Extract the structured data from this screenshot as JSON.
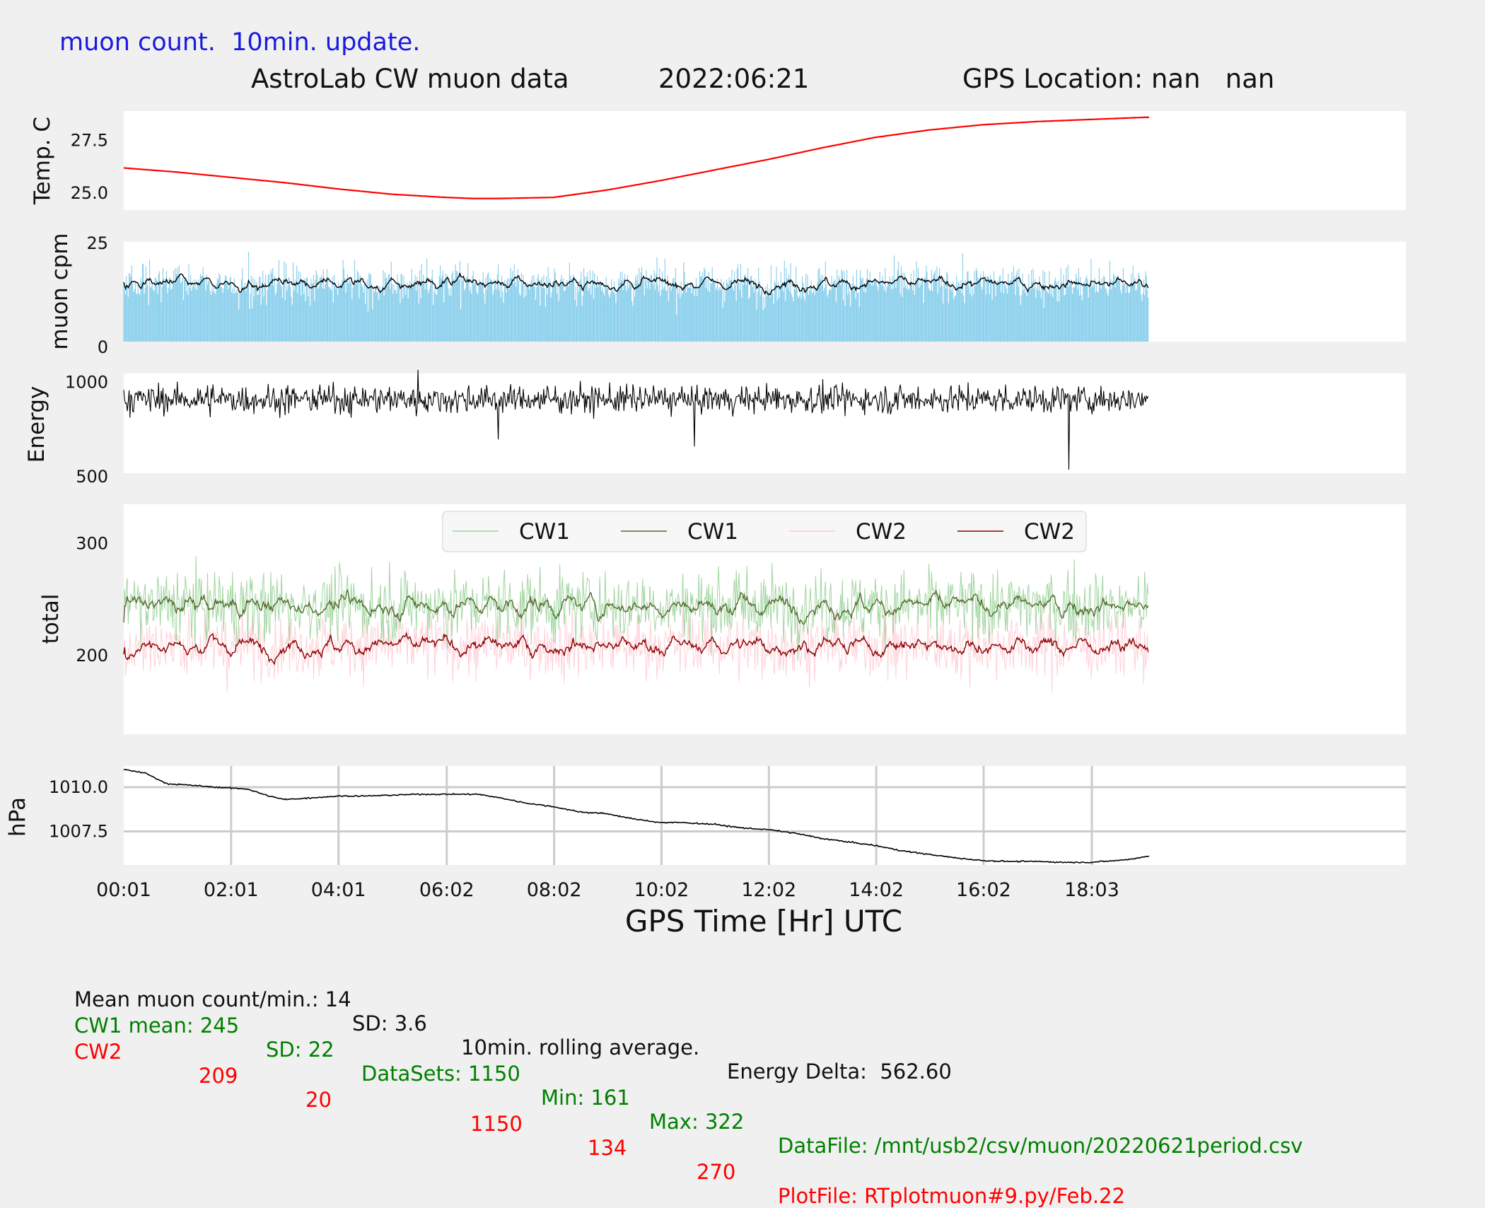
{
  "header": {
    "update_note": "muon count.  10min. update.",
    "title_left": "AstroLab CW muon data",
    "title_date": "2022:06:21",
    "title_gps": "GPS Location: nan   nan"
  },
  "x_axis": {
    "label": "GPS Time  [Hr] UTC",
    "ticks": [
      "00:01",
      "02:01",
      "04:01",
      "06:02",
      "08:02",
      "10:02",
      "12:02",
      "14:02",
      "16:02",
      "18:03"
    ]
  },
  "colors": {
    "temp": "#ff0000",
    "muon_bars": "#87ceeb",
    "cw1_raw": "#8fce8f",
    "cw1_avg": "#556b2f",
    "cw2_raw": "#ffc0cb",
    "cw2_avg": "#8b0000",
    "stats_cw1": "#008000",
    "stats_cw2": "#ff0000"
  },
  "chart_data": [
    {
      "type": "line",
      "ylabel": "Temp. C",
      "yticks": [
        "25.0",
        "27.5"
      ],
      "ylim": [
        24.2,
        28.9
      ],
      "x_hours": [
        0,
        1,
        2,
        3,
        4,
        5,
        6,
        6.5,
        7,
        8,
        9,
        10,
        11,
        12,
        13,
        14,
        15,
        16,
        17,
        18,
        19,
        19.1
      ],
      "series": [
        {
          "values": [
            26.2,
            26.0,
            25.75,
            25.5,
            25.2,
            24.95,
            24.8,
            24.75,
            24.75,
            24.8,
            25.15,
            25.6,
            26.1,
            26.6,
            27.15,
            27.65,
            28.0,
            28.25,
            28.4,
            28.5,
            28.6,
            28.6
          ]
        }
      ]
    },
    {
      "type": "bar",
      "ylabel": "muon cpm",
      "yticks": [
        "0",
        "25"
      ],
      "ylim": [
        0,
        24
      ],
      "x_range_hours": [
        0,
        19.1
      ],
      "mean": 14,
      "sd": 3.6,
      "note": "per-minute counts with 10min. rolling average"
    },
    {
      "type": "line",
      "ylabel": "Energy",
      "yticks": [
        "500",
        "1000"
      ],
      "ylim": [
        490,
        1050
      ],
      "x_range_hours": [
        0,
        19.1
      ],
      "mean": 910,
      "min": 510,
      "max": 1080
    },
    {
      "type": "line",
      "ylabel": "total",
      "yticks": [
        "200",
        "300"
      ],
      "ylim": [
        130,
        335
      ],
      "x_range_hours": [
        0,
        19.1
      ],
      "legend": [
        "CW1",
        "CW1",
        "CW2",
        "CW2"
      ],
      "legend_position": "top-center",
      "series": [
        {
          "name": "CW1",
          "kind": "raw",
          "mean": 245,
          "sd": 22,
          "min": 161,
          "max": 322
        },
        {
          "name": "CW1",
          "kind": "rolling",
          "mean": 245
        },
        {
          "name": "CW2",
          "kind": "raw",
          "mean": 209,
          "sd": 20,
          "min": 134,
          "max": 270
        },
        {
          "name": "CW2",
          "kind": "rolling",
          "mean": 209
        }
      ]
    },
    {
      "type": "line",
      "ylabel": "hPa",
      "yticks": [
        "1007.5",
        "1010.0"
      ],
      "ylim": [
        1005.6,
        1011.2
      ],
      "grid": true,
      "x_hours": [
        0,
        0.4,
        0.8,
        1.3,
        1.7,
        2.3,
        2.7,
        3.0,
        3.5,
        4.0,
        4.5,
        5.0,
        5.5,
        6.0,
        6.6,
        7.0,
        7.5,
        8.0,
        8.5,
        9.0,
        9.5,
        10.0,
        10.4,
        11.0,
        11.5,
        12.0,
        12.5,
        13.0,
        13.5,
        14.0,
        14.5,
        15.0,
        15.5,
        16.0,
        16.5,
        17.0,
        17.5,
        18.0,
        18.5,
        18.8,
        19.1
      ],
      "series": [
        {
          "values": [
            1011.0,
            1010.8,
            1010.2,
            1010.1,
            1010.0,
            1009.9,
            1009.5,
            1009.3,
            1009.4,
            1009.5,
            1009.5,
            1009.55,
            1009.6,
            1009.6,
            1009.6,
            1009.4,
            1009.1,
            1008.9,
            1008.6,
            1008.5,
            1008.2,
            1008.0,
            1008.0,
            1007.9,
            1007.7,
            1007.6,
            1007.4,
            1007.1,
            1006.9,
            1006.7,
            1006.4,
            1006.2,
            1006.0,
            1005.85,
            1005.8,
            1005.8,
            1005.75,
            1005.75,
            1005.85,
            1005.95,
            1006.1
          ]
        }
      ]
    }
  ],
  "footer": {
    "summary": {
      "mean_label": "Mean muon count/min.: 14",
      "sd_label": "SD: 3.6",
      "rolling_label": "10min. rolling average.",
      "energy_label": "Energy Delta:  562.60"
    },
    "cw1": {
      "name": "CW1 mean: 245",
      "sd": "SD: 22",
      "datasets": "DataSets: 1150",
      "min": "Min: 161",
      "max": "Max: 322",
      "file": "DataFile: /mnt/usb2/csv/muon/20220621period.csv"
    },
    "cw2": {
      "name": "CW2",
      "mean": "209",
      "sd": "20",
      "datasets": "1150",
      "min": "134",
      "max": "270",
      "file": "PlotFile: RTplotmuon#9.py/Feb.22"
    }
  }
}
